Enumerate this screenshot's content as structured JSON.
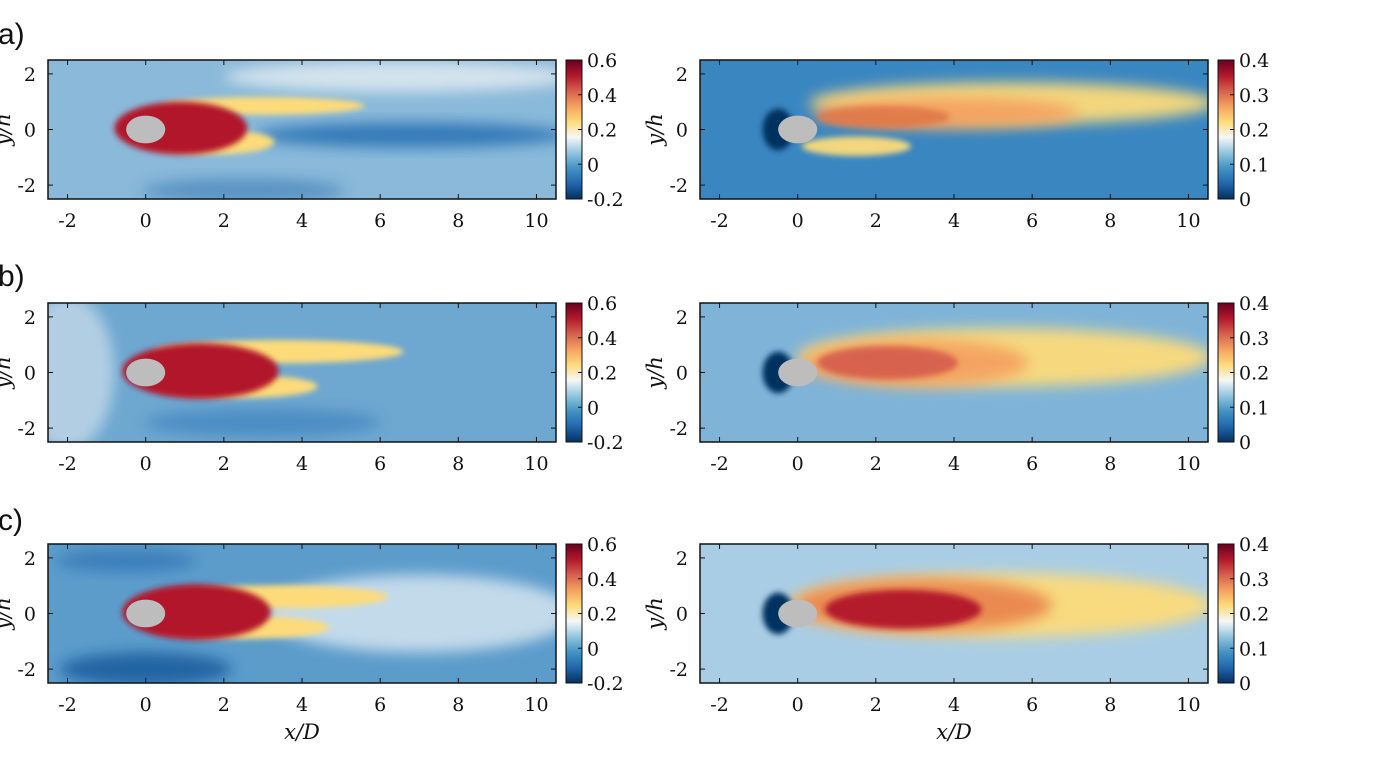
{
  "panel_labels": [
    "a)",
    "b)",
    "c)"
  ],
  "colormap": [
    "#053061",
    "#2166ac",
    "#4393c3",
    "#92c5de",
    "#f7f7f7",
    "#fddb7a",
    "#f4a261",
    "#d6604d",
    "#b2182b",
    "#67001f"
  ],
  "cylinder_color": "#bdbdbd",
  "chart_data": [
    {
      "panel": "a)",
      "column": "left",
      "type": "heatmap",
      "xlabel": "",
      "ylabel": "y/h",
      "xlim": [
        -2.5,
        10.5
      ],
      "ylim": [
        -2.5,
        2.5
      ],
      "xticks": [
        "-2",
        "0",
        "2",
        "4",
        "6",
        "8",
        "10"
      ],
      "yticks": [
        "-2",
        "0",
        "2"
      ],
      "colorbar": {
        "ticks": [
          "0.6",
          "0.4",
          "0.2",
          "0",
          "-0.2"
        ],
        "range": [
          -0.2,
          0.6
        ]
      },
      "cylinder": {
        "x": 0,
        "y": 0,
        "diameter": 1
      }
    },
    {
      "panel": "a)",
      "column": "right",
      "type": "heatmap",
      "xlabel": "",
      "ylabel": "y/h",
      "xlim": [
        -2.5,
        10.5
      ],
      "ylim": [
        -2.5,
        2.5
      ],
      "xticks": [
        "-2",
        "0",
        "2",
        "4",
        "6",
        "8",
        "10"
      ],
      "yticks": [
        "-2",
        "0",
        "2"
      ],
      "colorbar": {
        "ticks": [
          "0.4",
          "0.3",
          "0.2",
          "0.1",
          "0"
        ],
        "range": [
          0,
          0.4
        ]
      },
      "cylinder": {
        "x": 0,
        "y": 0,
        "diameter": 1
      }
    },
    {
      "panel": "b)",
      "column": "left",
      "type": "heatmap",
      "xlabel": "",
      "ylabel": "y/h",
      "xlim": [
        -2.5,
        10.5
      ],
      "ylim": [
        -2.5,
        2.5
      ],
      "xticks": [
        "-2",
        "0",
        "2",
        "4",
        "6",
        "8",
        "10"
      ],
      "yticks": [
        "-2",
        "0",
        "2"
      ],
      "colorbar": {
        "ticks": [
          "0.6",
          "0.4",
          "0.2",
          "0",
          "-0.2"
        ],
        "range": [
          -0.2,
          0.6
        ]
      },
      "cylinder": {
        "x": 0,
        "y": 0,
        "diameter": 1
      }
    },
    {
      "panel": "b)",
      "column": "right",
      "type": "heatmap",
      "xlabel": "",
      "ylabel": "y/h",
      "xlim": [
        -2.5,
        10.5
      ],
      "ylim": [
        -2.5,
        2.5
      ],
      "xticks": [
        "-2",
        "0",
        "2",
        "4",
        "6",
        "8",
        "10"
      ],
      "yticks": [
        "-2",
        "0",
        "2"
      ],
      "colorbar": {
        "ticks": [
          "0.4",
          "0.3",
          "0.2",
          "0.1",
          "0"
        ],
        "range": [
          0,
          0.4
        ]
      },
      "cylinder": {
        "x": 0,
        "y": 0,
        "diameter": 1
      }
    },
    {
      "panel": "c)",
      "column": "left",
      "type": "heatmap",
      "xlabel": "x/D",
      "ylabel": "y/h",
      "xlim": [
        -2.5,
        10.5
      ],
      "ylim": [
        -2.5,
        2.5
      ],
      "xticks": [
        "-2",
        "0",
        "2",
        "4",
        "6",
        "8",
        "10"
      ],
      "yticks": [
        "-2",
        "0",
        "2"
      ],
      "colorbar": {
        "ticks": [
          "0.6",
          "0.4",
          "0.2",
          "0",
          "-0.2"
        ],
        "range": [
          -0.2,
          0.6
        ]
      },
      "cylinder": {
        "x": 0,
        "y": 0,
        "diameter": 1
      }
    },
    {
      "panel": "c)",
      "column": "right",
      "type": "heatmap",
      "xlabel": "x/D",
      "ylabel": "y/h",
      "xlim": [
        -2.5,
        10.5
      ],
      "ylim": [
        -2.5,
        2.5
      ],
      "xticks": [
        "-2",
        "0",
        "2",
        "4",
        "6",
        "8",
        "10"
      ],
      "yticks": [
        "-2",
        "0",
        "2"
      ],
      "colorbar": {
        "ticks": [
          "0.4",
          "0.3",
          "0.2",
          "0.1",
          "0"
        ],
        "range": [
          0,
          0.4
        ]
      },
      "cylinder": {
        "x": 0,
        "y": 0,
        "diameter": 1
      }
    }
  ]
}
